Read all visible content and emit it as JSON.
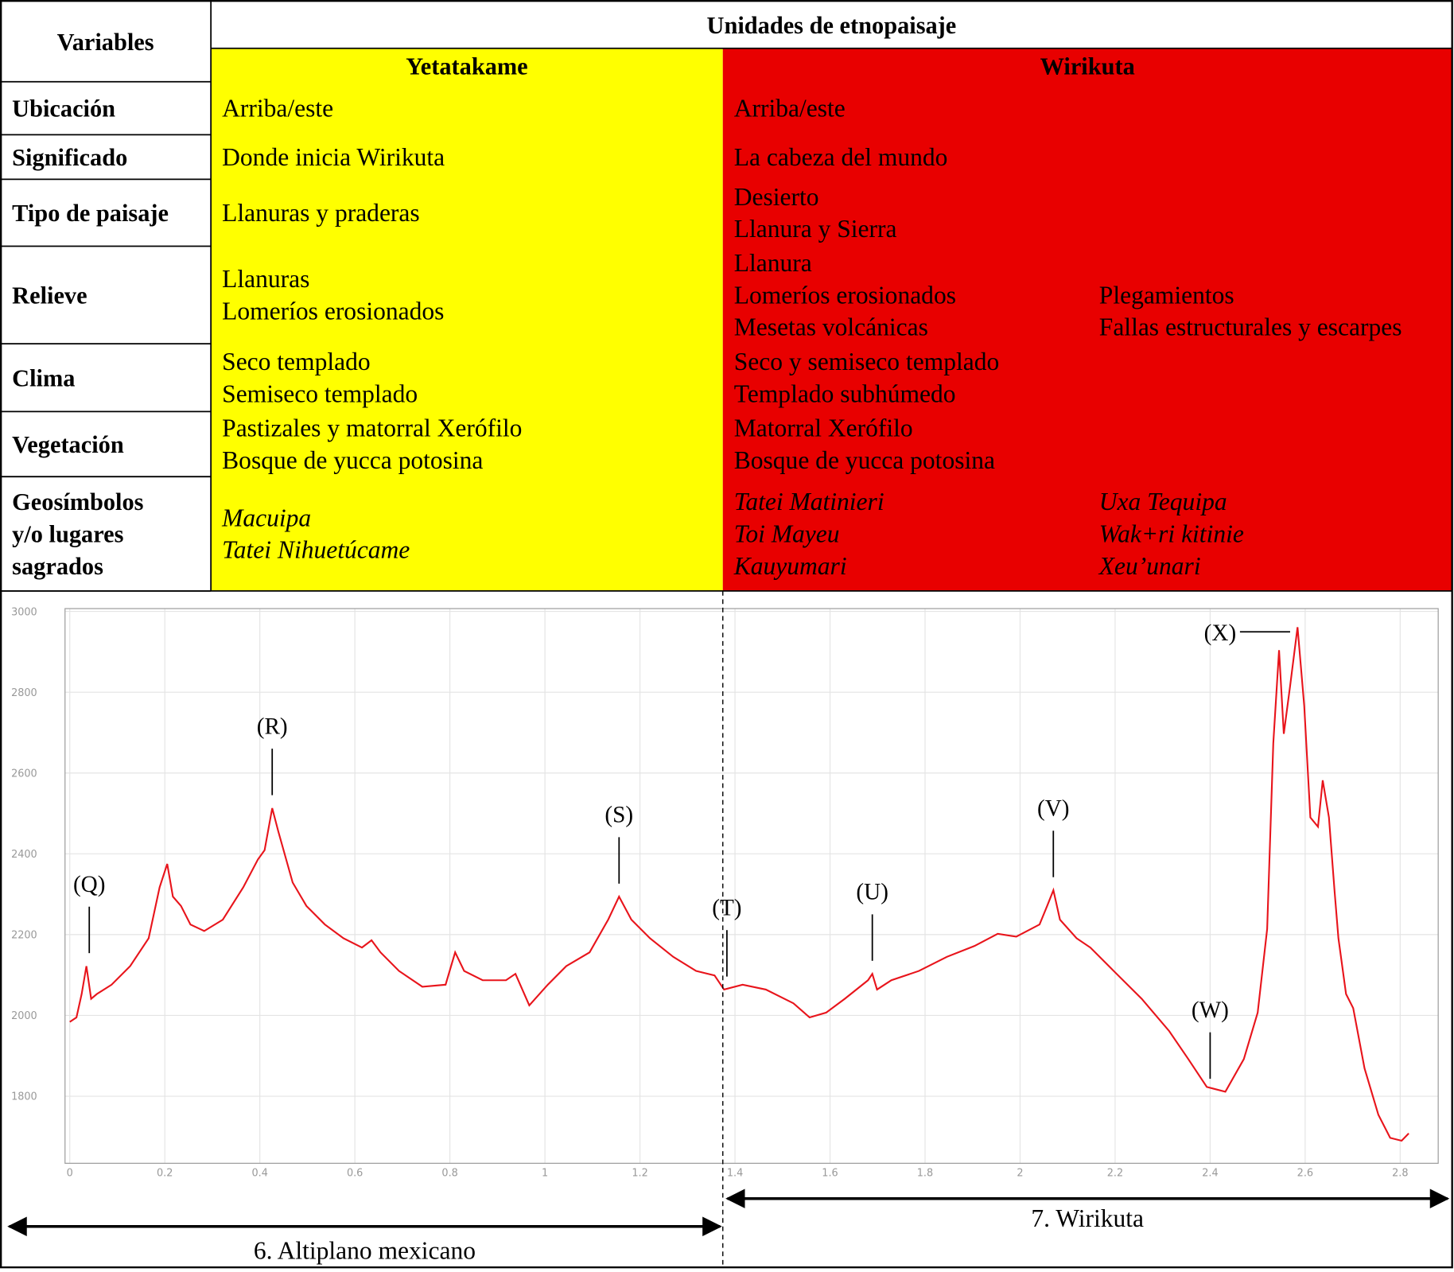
{
  "table": {
    "corner": "Variables",
    "group": "Unidades de etnopaisaje",
    "columns": [
      {
        "name": "Yetatakame",
        "color": "#ffff00"
      },
      {
        "name": "Wirikuta",
        "color": "#e80000"
      }
    ],
    "rows": [
      {
        "label": [
          "Ubicación"
        ],
        "cells": [
          [
            [
              "Arriba/este"
            ]
          ],
          [
            [
              "Arriba/este"
            ]
          ]
        ]
      },
      {
        "label": [
          "Significado"
        ],
        "cells": [
          [
            [
              "Donde inicia Wirikuta"
            ]
          ],
          [
            [
              "La cabeza del mundo"
            ]
          ]
        ]
      },
      {
        "label": [
          "Tipo de paisaje"
        ],
        "cells": [
          [
            [
              "Llanuras y praderas"
            ]
          ],
          [
            [
              "Desierto",
              "Llanura y Sierra"
            ]
          ]
        ]
      },
      {
        "label": [
          "Relieve"
        ],
        "cells": [
          [
            [
              "Llanuras",
              "Lomeríos erosionados"
            ]
          ],
          [
            [
              "Llanura",
              "Lomeríos erosionados",
              "Mesetas volcánicas"
            ],
            [
              "Plegamientos",
              "Fallas estructurales y escarpes"
            ]
          ]
        ]
      },
      {
        "label": [
          "Clima"
        ],
        "cells": [
          [
            [
              "Seco templado",
              "Semiseco templado"
            ]
          ],
          [
            [
              "Seco y semiseco templado",
              "Templado subhúmedo"
            ]
          ]
        ]
      },
      {
        "label": [
          "Vegetación"
        ],
        "cells": [
          [
            [
              "Pastizales y matorral Xerófilo",
              "Bosque de yucca potosina"
            ]
          ],
          [
            [
              "Matorral Xerófilo",
              "Bosque de yucca potosina"
            ]
          ]
        ]
      },
      {
        "label": [
          "Geosímbolos",
          "y/o lugares",
          "sagrados"
        ],
        "italic": true,
        "cells": [
          [
            [
              "Macuipa",
              "Tatei Nihuetúcame"
            ]
          ],
          [
            [
              "Tatei Matinieri",
              "Toi Mayeu",
              "Kauyumari"
            ],
            [
              "Uxa Tequipa",
              "Wak+ri kitinie",
              "Xeu’unari"
            ]
          ]
        ]
      }
    ]
  },
  "chart_data": {
    "type": "line",
    "x": [
      0,
      0.014,
      0.025,
      0.035,
      0.045,
      0.057,
      0.088,
      0.127,
      0.166,
      0.189,
      0.205,
      0.217,
      0.234,
      0.254,
      0.283,
      0.322,
      0.365,
      0.396,
      0.41,
      0.426,
      0.439,
      0.469,
      0.498,
      0.537,
      0.576,
      0.615,
      0.635,
      0.654,
      0.693,
      0.742,
      0.791,
      0.811,
      0.83,
      0.869,
      0.918,
      0.938,
      0.967,
      1.006,
      1.045,
      1.094,
      1.133,
      1.156,
      1.182,
      1.221,
      1.27,
      1.318,
      1.357,
      1.377,
      1.416,
      1.465,
      1.523,
      1.557,
      1.592,
      1.631,
      1.68,
      1.689,
      1.699,
      1.729,
      1.787,
      1.846,
      1.904,
      1.953,
      1.992,
      2.041,
      2.057,
      2.07,
      2.084,
      2.119,
      2.148,
      2.197,
      2.256,
      2.314,
      2.354,
      2.393,
      2.432,
      2.471,
      2.5,
      2.52,
      2.533,
      2.545,
      2.555,
      2.568,
      2.584,
      2.598,
      2.611,
      2.627,
      2.637,
      2.65,
      2.662,
      2.67,
      2.686,
      2.701,
      2.725,
      2.754,
      2.779,
      2.803,
      2.818
    ],
    "series": [
      {
        "color": "#e8141b",
        "values": [
          1984,
          1995,
          2053,
          2122,
          2041,
          2053,
          2076,
          2122,
          2191,
          2317,
          2375,
          2294,
          2271,
          2225,
          2209,
          2237,
          2317,
          2386,
          2409,
          2513,
          2455,
          2329,
          2271,
          2225,
          2191,
          2168,
          2186,
          2156,
          2110,
          2071,
          2076,
          2156,
          2110,
          2087,
          2087,
          2103,
          2025,
          2076,
          2122,
          2156,
          2237,
          2294,
          2237,
          2191,
          2145,
          2110,
          2099,
          2064,
          2076,
          2064,
          2030,
          1995,
          2007,
          2041,
          2087,
          2103,
          2064,
          2087,
          2110,
          2145,
          2172,
          2202,
          2195,
          2225,
          2271,
          2310,
          2237,
          2191,
          2168,
          2110,
          2041,
          1961,
          1892,
          1823,
          1811,
          1892,
          2007,
          2214,
          2674,
          2904,
          2697,
          2812,
          2961,
          2766,
          2490,
          2467,
          2582,
          2490,
          2306,
          2191,
          2053,
          2018,
          1869,
          1754,
          1697,
          1690,
          1708
        ]
      }
    ],
    "xlim": [
      -0.01,
      2.88
    ],
    "ylim": [
      1634,
      3007
    ],
    "xticks": [
      0,
      0.2,
      0.4,
      0.6,
      0.8,
      1,
      1.2,
      1.4,
      1.6,
      1.8,
      2,
      2.2,
      2.4,
      2.6,
      2.8
    ],
    "yticks": [
      1800,
      2000,
      2200,
      2400,
      2600,
      2800,
      3000
    ],
    "grid": true,
    "annotations": [
      {
        "text": "(Q)",
        "x": 0.041,
        "y": 2122
      },
      {
        "text": "(R)",
        "x": 0.426,
        "y": 2513
      },
      {
        "text": "(S)",
        "x": 1.156,
        "y": 2294
      },
      {
        "text": "(T)",
        "x": 1.383,
        "y": 2064
      },
      {
        "text": "(U)",
        "x": 1.689,
        "y": 2103
      },
      {
        "text": "(V)",
        "x": 2.07,
        "y": 2310
      },
      {
        "text": "(W)",
        "x": 2.4,
        "y": 1811
      },
      {
        "text": "(X)",
        "x": 2.584,
        "y": 2961,
        "leader": "horizontal"
      }
    ],
    "regions": [
      {
        "label": "6. Altiplano mexicano"
      },
      {
        "label": "7. Wirikuta"
      }
    ]
  }
}
